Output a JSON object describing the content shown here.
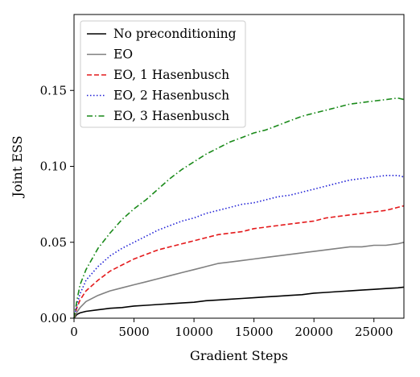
{
  "chart_data": {
    "type": "line",
    "title": "",
    "xlabel": "Gradient Steps",
    "ylabel": "Joint ESS",
    "xlim": [
      0,
      27500
    ],
    "ylim": [
      0,
      0.2
    ],
    "xticks": [
      0,
      5000,
      10000,
      15000,
      20000,
      25000
    ],
    "xtick_labels": [
      "0",
      "5000",
      "10000",
      "15000",
      "20000",
      "25000"
    ],
    "yticks": [
      0,
      0.05,
      0.1,
      0.15
    ],
    "ytick_labels": [
      "0.00",
      "0.05",
      "0.10",
      "0.15"
    ],
    "grid": false,
    "legend_position": "top-left",
    "series": [
      {
        "name": "No preconditioning",
        "color": "#000000",
        "dash": "solid",
        "x": [
          0,
          250,
          500,
          1000,
          2000,
          3000,
          4000,
          5000,
          6000,
          7000,
          8000,
          9000,
          10000,
          11000,
          12000,
          13000,
          14000,
          15000,
          16000,
          17000,
          18000,
          19000,
          20000,
          21000,
          22000,
          23000,
          24000,
          25000,
          26000,
          27000,
          27500
        ],
        "y": [
          0,
          0.0025,
          0.0035,
          0.0045,
          0.0055,
          0.0065,
          0.007,
          0.008,
          0.0085,
          0.009,
          0.0095,
          0.01,
          0.0105,
          0.0115,
          0.012,
          0.0125,
          0.013,
          0.0135,
          0.014,
          0.0145,
          0.015,
          0.0155,
          0.0165,
          0.017,
          0.0175,
          0.018,
          0.0185,
          0.019,
          0.0195,
          0.02,
          0.0205
        ]
      },
      {
        "name": "EO",
        "color": "#808080",
        "dash": "solid",
        "x": [
          0,
          250,
          500,
          1000,
          2000,
          3000,
          4000,
          5000,
          6000,
          7000,
          8000,
          9000,
          10000,
          11000,
          12000,
          13000,
          14000,
          15000,
          16000,
          17000,
          18000,
          19000,
          20000,
          21000,
          22000,
          23000,
          24000,
          25000,
          26000,
          27000,
          27500
        ],
        "y": [
          0,
          0.004,
          0.007,
          0.011,
          0.015,
          0.018,
          0.02,
          0.022,
          0.024,
          0.026,
          0.028,
          0.03,
          0.032,
          0.034,
          0.036,
          0.037,
          0.038,
          0.039,
          0.04,
          0.041,
          0.042,
          0.043,
          0.044,
          0.045,
          0.046,
          0.047,
          0.047,
          0.048,
          0.048,
          0.049,
          0.05
        ]
      },
      {
        "name": "EO, 1 Hasenbusch",
        "color": "#e41a1c",
        "dash": "dashed",
        "x": [
          0,
          250,
          500,
          1000,
          2000,
          3000,
          4000,
          5000,
          6000,
          7000,
          8000,
          9000,
          10000,
          11000,
          12000,
          13000,
          14000,
          15000,
          16000,
          17000,
          18000,
          19000,
          20000,
          21000,
          22000,
          23000,
          24000,
          25000,
          26000,
          27000,
          27500
        ],
        "y": [
          0,
          0.007,
          0.012,
          0.018,
          0.025,
          0.031,
          0.035,
          0.039,
          0.042,
          0.045,
          0.047,
          0.049,
          0.051,
          0.053,
          0.055,
          0.056,
          0.057,
          0.059,
          0.06,
          0.061,
          0.062,
          0.063,
          0.064,
          0.066,
          0.067,
          0.068,
          0.069,
          0.07,
          0.071,
          0.073,
          0.074
        ]
      },
      {
        "name": "EO, 2 Hasenbusch",
        "color": "#1f1fd6",
        "dash": "dotted",
        "x": [
          0,
          250,
          500,
          1000,
          2000,
          3000,
          4000,
          5000,
          6000,
          7000,
          8000,
          9000,
          10000,
          11000,
          12000,
          13000,
          14000,
          15000,
          16000,
          17000,
          18000,
          19000,
          20000,
          21000,
          22000,
          23000,
          24000,
          25000,
          26000,
          27000,
          27500
        ],
        "y": [
          0,
          0.009,
          0.016,
          0.025,
          0.034,
          0.041,
          0.046,
          0.05,
          0.054,
          0.058,
          0.061,
          0.064,
          0.066,
          0.069,
          0.071,
          0.073,
          0.075,
          0.076,
          0.078,
          0.08,
          0.081,
          0.083,
          0.085,
          0.087,
          0.089,
          0.091,
          0.092,
          0.093,
          0.094,
          0.094,
          0.093
        ]
      },
      {
        "name": "EO, 3 Hasenbusch",
        "color": "#1a8a1a",
        "dash": "dashdot",
        "x": [
          0,
          250,
          500,
          1000,
          2000,
          3000,
          4000,
          5000,
          6000,
          7000,
          8000,
          9000,
          10000,
          11000,
          12000,
          13000,
          14000,
          15000,
          16000,
          17000,
          18000,
          19000,
          20000,
          21000,
          22000,
          23000,
          24000,
          25000,
          26000,
          27000,
          27500
        ],
        "y": [
          0,
          0.012,
          0.022,
          0.032,
          0.046,
          0.056,
          0.065,
          0.072,
          0.078,
          0.085,
          0.092,
          0.098,
          0.103,
          0.108,
          0.112,
          0.116,
          0.119,
          0.122,
          0.124,
          0.127,
          0.13,
          0.133,
          0.135,
          0.137,
          0.139,
          0.141,
          0.142,
          0.143,
          0.144,
          0.145,
          0.144
        ]
      }
    ]
  }
}
